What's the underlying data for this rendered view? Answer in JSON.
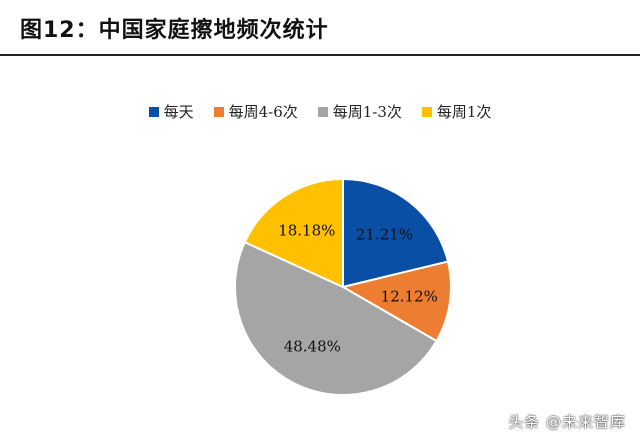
{
  "figure": {
    "title": "图12：中国家庭擦地频次统计"
  },
  "watermark": "头条 @未来智库",
  "chart_data": {
    "type": "pie",
    "legend_position": "top",
    "slices": [
      {
        "label": "每天",
        "value": 21.21,
        "display": "21.21%",
        "color": "#0a4fa6"
      },
      {
        "label": "每周4-6次",
        "value": 12.12,
        "display": "12.12%",
        "color": "#ed7d31"
      },
      {
        "label": "每周1-3次",
        "value": 48.48,
        "display": "48.48%",
        "color": "#a5a5a5"
      },
      {
        "label": "每周1次",
        "value": 18.18,
        "display": "18.18%",
        "color": "#ffc000"
      }
    ]
  }
}
